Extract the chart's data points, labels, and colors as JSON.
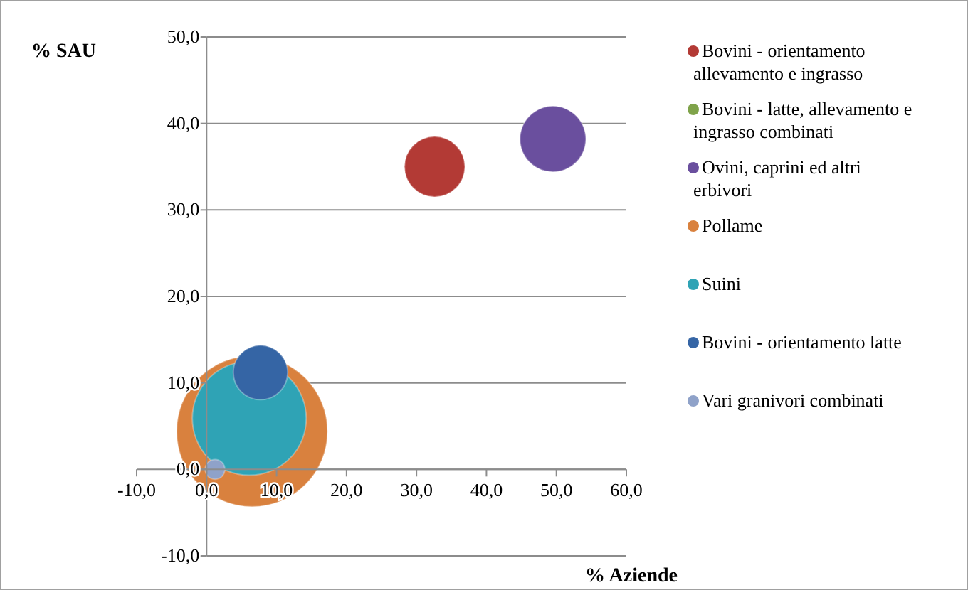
{
  "chart_data": {
    "type": "bubble",
    "xlabel": "% Aziende",
    "ylabel": "% SAU",
    "xlim": [
      -10,
      60
    ],
    "ylim": [
      -10,
      50
    ],
    "xticks": [
      {
        "value": -10,
        "label": "-10,0"
      },
      {
        "value": 0,
        "label": "0,0"
      },
      {
        "value": 10,
        "label": "10,0"
      },
      {
        "value": 20,
        "label": "20,0"
      },
      {
        "value": 30,
        "label": "30,0"
      },
      {
        "value": 40,
        "label": "40,0"
      },
      {
        "value": 50,
        "label": "50,0"
      },
      {
        "value": 60,
        "label": "60,0"
      }
    ],
    "yticks": [
      {
        "value": -10,
        "label": "-10,0"
      },
      {
        "value": 0,
        "label": "0,0"
      },
      {
        "value": 10,
        "label": "10,0"
      },
      {
        "value": 20,
        "label": "20,0"
      },
      {
        "value": 30,
        "label": "30,0"
      },
      {
        "value": 40,
        "label": "40,0"
      },
      {
        "value": 50,
        "label": "50,0"
      }
    ],
    "grid": "y",
    "legend": "right",
    "series": [
      {
        "name": "Bovini - orientamento allevamento e ingrasso",
        "color": "#b33a35",
        "x": [
          32.6
        ],
        "values": [
          35
        ],
        "sizes": [
          0.16
        ]
      },
      {
        "name": "Bovini - latte, allevamento e ingrasso combinati",
        "color": "#7fa34a",
        "x": [
          null
        ],
        "values": [
          null
        ],
        "sizes": [
          null
        ]
      },
      {
        "name": "Ovini, caprini ed altri erbivori",
        "color": "#6a4f9e",
        "x": [
          49.5
        ],
        "values": [
          38.2
        ],
        "sizes": [
          0.19
        ]
      },
      {
        "name": "Pollame",
        "color": "#d9813e",
        "x": [
          6.5
        ],
        "values": [
          4.4
        ],
        "sizes": [
          1
        ]
      },
      {
        "name": "Suini",
        "color": "#2fa3b5",
        "x": [
          6.1
        ],
        "values": [
          5.9
        ],
        "sizes": [
          0.57
        ]
      },
      {
        "name": "Bovini - orientamento latte",
        "color": "#3565a5",
        "x": [
          7.7
        ],
        "values": [
          11.2
        ],
        "sizes": [
          0.13
        ]
      },
      {
        "name": "Vari granivori combinati",
        "color": "#8fa2c9",
        "x": [
          1.2
        ],
        "values": [
          0
        ],
        "sizes": [
          0.017
        ]
      }
    ]
  }
}
